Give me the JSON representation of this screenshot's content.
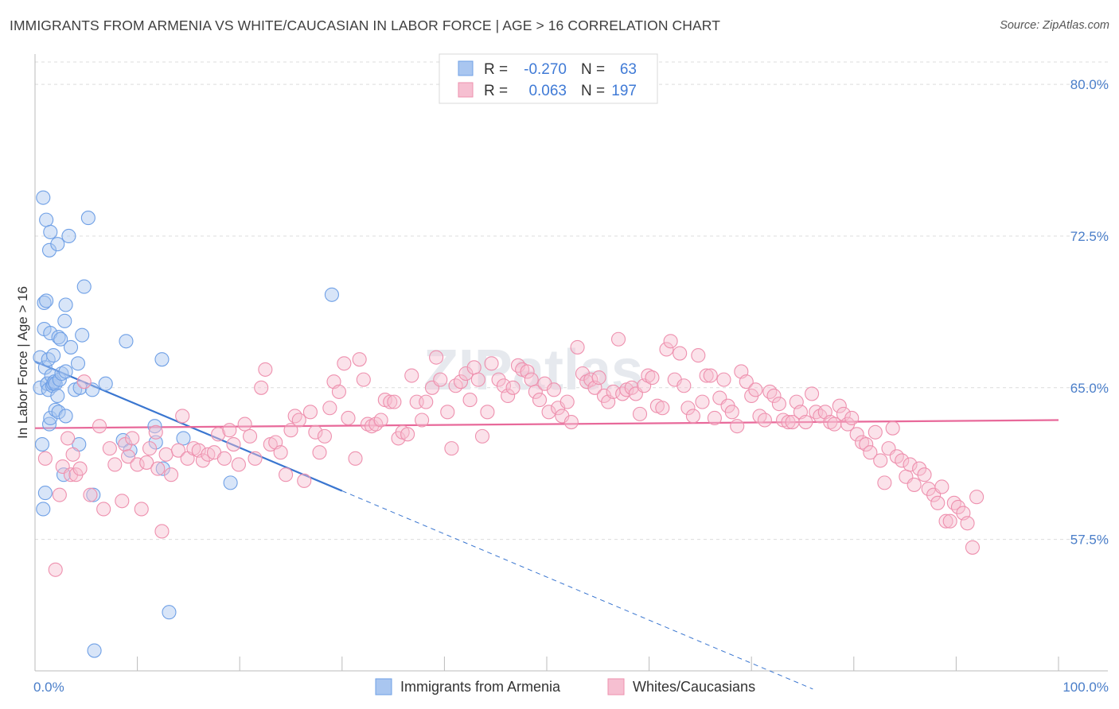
{
  "title": "IMMIGRANTS FROM ARMENIA VS WHITE/CAUCASIAN IN LABOR FORCE | AGE > 16 CORRELATION CHART",
  "source": "Source: ZipAtlas.com",
  "watermark": "ZIPatlas",
  "chart_data": {
    "type": "scatter",
    "ylabel": "In Labor Force | Age > 16",
    "xlim": [
      0,
      100
    ],
    "ylim": [
      51.0,
      81.5
    ],
    "x_tick_labels": [
      {
        "value": 0,
        "label": "0.0%"
      },
      {
        "value": 100,
        "label": "100.0%"
      }
    ],
    "y_ticks": [
      {
        "value": 57.5,
        "label": "57.5%"
      },
      {
        "value": 65.0,
        "label": "65.0%"
      },
      {
        "value": 72.5,
        "label": "72.5%"
      },
      {
        "value": 80.0,
        "label": "80.0%"
      }
    ],
    "grid": "horizontal dashed",
    "legend_position": "top-center",
    "stats": [
      {
        "r_label": "R =",
        "r": "-0.270",
        "n_label": "N =",
        "n": "63"
      },
      {
        "r_label": "R =",
        "r": "0.063",
        "n_label": "N =",
        "n": "197"
      }
    ],
    "series": [
      {
        "name": "Immigrants from Armenia",
        "color": "#6fa0e6",
        "fill": "#a9c6f0",
        "line_color": "#3a76d0",
        "trend": {
          "x0": 0,
          "y0": 66.3,
          "x1": 30,
          "y1": 59.9,
          "dash_to_x": 76,
          "dash_to_y": 50.1
        },
        "points": [
          [
            0.5,
            66.5
          ],
          [
            0.5,
            65.0
          ],
          [
            0.7,
            62.2
          ],
          [
            0.8,
            74.4
          ],
          [
            0.8,
            59.0
          ],
          [
            0.9,
            69.2
          ],
          [
            0.9,
            67.9
          ],
          [
            1.0,
            66.0
          ],
          [
            1.0,
            59.8
          ],
          [
            1.1,
            69.3
          ],
          [
            1.1,
            73.3
          ],
          [
            1.2,
            65.2
          ],
          [
            1.2,
            65.2
          ],
          [
            1.3,
            66.4
          ],
          [
            1.3,
            64.9
          ],
          [
            1.4,
            71.8
          ],
          [
            1.4,
            63.2
          ],
          [
            1.5,
            67.7
          ],
          [
            1.5,
            63.5
          ],
          [
            1.5,
            72.7
          ],
          [
            1.6,
            65.6
          ],
          [
            1.7,
            65.1
          ],
          [
            1.8,
            66.6
          ],
          [
            1.8,
            65.2
          ],
          [
            1.9,
            65.3
          ],
          [
            2.0,
            63.9
          ],
          [
            2.0,
            65.2
          ],
          [
            2.2,
            72.1
          ],
          [
            2.2,
            64.6
          ],
          [
            2.3,
            63.8
          ],
          [
            2.3,
            67.5
          ],
          [
            2.4,
            65.4
          ],
          [
            2.5,
            67.4
          ],
          [
            2.6,
            65.7
          ],
          [
            2.8,
            60.7
          ],
          [
            2.9,
            68.3
          ],
          [
            3.0,
            63.6
          ],
          [
            3.0,
            69.1
          ],
          [
            3.3,
            72.5
          ],
          [
            3.5,
            67.0
          ],
          [
            3.9,
            64.9
          ],
          [
            4.2,
            66.2
          ],
          [
            4.3,
            62.2
          ],
          [
            4.4,
            65.0
          ],
          [
            4.6,
            67.6
          ],
          [
            4.8,
            70.0
          ],
          [
            5.2,
            73.4
          ],
          [
            5.6,
            64.9
          ],
          [
            5.7,
            59.7
          ],
          [
            5.8,
            52.0
          ],
          [
            6.9,
            65.2
          ],
          [
            8.6,
            62.4
          ],
          [
            8.9,
            67.3
          ],
          [
            9.3,
            61.9
          ],
          [
            11.7,
            63.1
          ],
          [
            11.8,
            62.3
          ],
          [
            12.4,
            66.4
          ],
          [
            12.5,
            61.0
          ],
          [
            13.1,
            53.9
          ],
          [
            14.5,
            62.5
          ],
          [
            19.1,
            60.3
          ],
          [
            29.0,
            69.6
          ],
          [
            3.0,
            65.8
          ]
        ]
      },
      {
        "name": "Whites/Caucasians",
        "color": "#ee90ae",
        "fill": "#f6bfd1",
        "line_color": "#e8699a",
        "trend": {
          "x0": 0,
          "y0": 63.0,
          "x1": 100,
          "y1": 63.4
        },
        "points": [
          [
            1.0,
            61.5
          ],
          [
            2.0,
            56.0
          ],
          [
            2.4,
            59.7
          ],
          [
            2.7,
            61.1
          ],
          [
            3.2,
            62.5
          ],
          [
            3.5,
            60.7
          ],
          [
            3.7,
            61.7
          ],
          [
            4.0,
            60.7
          ],
          [
            4.4,
            61.0
          ],
          [
            4.8,
            65.3
          ],
          [
            5.4,
            59.7
          ],
          [
            6.3,
            63.1
          ],
          [
            6.7,
            59.0
          ],
          [
            7.3,
            62.0
          ],
          [
            7.8,
            61.2
          ],
          [
            8.5,
            59.4
          ],
          [
            8.8,
            62.2
          ],
          [
            9.1,
            61.6
          ],
          [
            9.5,
            62.5
          ],
          [
            10.0,
            61.2
          ],
          [
            10.4,
            59.0
          ],
          [
            10.9,
            61.3
          ],
          [
            11.2,
            62.0
          ],
          [
            11.8,
            62.8
          ],
          [
            12.0,
            61.0
          ],
          [
            12.4,
            57.9
          ],
          [
            12.8,
            61.7
          ],
          [
            13.3,
            60.7
          ],
          [
            14.0,
            61.9
          ],
          [
            14.4,
            63.6
          ],
          [
            14.9,
            61.5
          ],
          [
            15.5,
            62.0
          ],
          [
            16.0,
            61.9
          ],
          [
            16.4,
            61.4
          ],
          [
            16.9,
            61.7
          ],
          [
            17.5,
            61.8
          ],
          [
            17.9,
            62.7
          ],
          [
            18.5,
            61.5
          ],
          [
            19.0,
            62.9
          ],
          [
            19.4,
            62.2
          ],
          [
            19.9,
            61.2
          ],
          [
            20.5,
            63.2
          ],
          [
            21.0,
            62.6
          ],
          [
            21.5,
            61.5
          ],
          [
            22.1,
            65.0
          ],
          [
            22.5,
            65.9
          ],
          [
            23.0,
            62.2
          ],
          [
            23.5,
            62.3
          ],
          [
            24.0,
            61.8
          ],
          [
            24.5,
            60.7
          ],
          [
            25.0,
            62.9
          ],
          [
            25.4,
            63.6
          ],
          [
            25.8,
            63.4
          ],
          [
            26.3,
            60.4
          ],
          [
            26.9,
            63.8
          ],
          [
            27.4,
            62.8
          ],
          [
            27.8,
            61.8
          ],
          [
            28.3,
            62.6
          ],
          [
            28.8,
            64.0
          ],
          [
            29.2,
            65.3
          ],
          [
            29.7,
            64.8
          ],
          [
            30.2,
            66.2
          ],
          [
            30.6,
            63.5
          ],
          [
            31.3,
            61.5
          ],
          [
            31.7,
            66.4
          ],
          [
            32.1,
            65.4
          ],
          [
            32.5,
            63.2
          ],
          [
            32.9,
            63.1
          ],
          [
            33.3,
            63.2
          ],
          [
            33.8,
            63.4
          ],
          [
            34.2,
            64.4
          ],
          [
            34.7,
            64.3
          ],
          [
            35.1,
            64.3
          ],
          [
            35.5,
            62.5
          ],
          [
            35.9,
            62.8
          ],
          [
            36.4,
            62.7
          ],
          [
            36.8,
            65.6
          ],
          [
            37.3,
            64.3
          ],
          [
            37.8,
            63.4
          ],
          [
            38.2,
            64.3
          ],
          [
            38.8,
            65.0
          ],
          [
            39.2,
            66.5
          ],
          [
            39.6,
            65.4
          ],
          [
            40.3,
            63.8
          ],
          [
            40.7,
            62.0
          ],
          [
            41.1,
            65.1
          ],
          [
            41.6,
            65.3
          ],
          [
            42.1,
            65.7
          ],
          [
            42.5,
            64.4
          ],
          [
            42.9,
            66.0
          ],
          [
            43.3,
            65.4
          ],
          [
            43.7,
            62.6
          ],
          [
            44.2,
            63.8
          ],
          [
            44.6,
            66.2
          ],
          [
            45.3,
            65.4
          ],
          [
            45.8,
            65.1
          ],
          [
            46.2,
            64.6
          ],
          [
            46.7,
            65.0
          ],
          [
            47.2,
            66.1
          ],
          [
            47.6,
            65.9
          ],
          [
            48.1,
            65.8
          ],
          [
            48.5,
            65.4
          ],
          [
            48.9,
            64.8
          ],
          [
            49.3,
            64.4
          ],
          [
            49.8,
            65.2
          ],
          [
            50.2,
            63.8
          ],
          [
            50.7,
            64.9
          ],
          [
            51.1,
            64.0
          ],
          [
            51.5,
            63.6
          ],
          [
            52.0,
            64.3
          ],
          [
            52.4,
            63.3
          ],
          [
            53.0,
            67.0
          ],
          [
            53.5,
            65.7
          ],
          [
            53.9,
            65.3
          ],
          [
            54.3,
            65.4
          ],
          [
            54.7,
            65.0
          ],
          [
            55.1,
            65.5
          ],
          [
            55.6,
            64.6
          ],
          [
            56.0,
            64.3
          ],
          [
            56.5,
            64.8
          ],
          [
            57.0,
            67.4
          ],
          [
            57.4,
            64.7
          ],
          [
            57.8,
            64.9
          ],
          [
            58.3,
            65.0
          ],
          [
            58.7,
            64.7
          ],
          [
            59.1,
            63.7
          ],
          [
            59.5,
            65.1
          ],
          [
            59.9,
            65.6
          ],
          [
            60.3,
            65.5
          ],
          [
            60.8,
            64.1
          ],
          [
            61.3,
            64.0
          ],
          [
            61.7,
            66.9
          ],
          [
            62.1,
            67.3
          ],
          [
            62.5,
            65.4
          ],
          [
            63.0,
            66.7
          ],
          [
            63.4,
            65.1
          ],
          [
            63.8,
            64.0
          ],
          [
            64.3,
            63.6
          ],
          [
            64.8,
            66.6
          ],
          [
            65.2,
            64.3
          ],
          [
            65.6,
            65.6
          ],
          [
            66.0,
            65.6
          ],
          [
            66.4,
            63.5
          ],
          [
            66.9,
            64.5
          ],
          [
            67.3,
            65.4
          ],
          [
            67.7,
            64.1
          ],
          [
            68.1,
            63.8
          ],
          [
            68.6,
            63.1
          ],
          [
            69.0,
            65.8
          ],
          [
            69.5,
            65.3
          ],
          [
            70.0,
            64.6
          ],
          [
            70.4,
            64.9
          ],
          [
            70.8,
            63.6
          ],
          [
            71.3,
            63.4
          ],
          [
            71.8,
            64.8
          ],
          [
            72.2,
            64.6
          ],
          [
            72.7,
            64.2
          ],
          [
            73.1,
            63.4
          ],
          [
            73.6,
            63.3
          ],
          [
            74.0,
            63.3
          ],
          [
            74.4,
            64.3
          ],
          [
            74.8,
            63.8
          ],
          [
            75.3,
            63.3
          ],
          [
            75.9,
            64.7
          ],
          [
            76.3,
            63.8
          ],
          [
            76.7,
            63.6
          ],
          [
            77.2,
            63.8
          ],
          [
            77.7,
            63.3
          ],
          [
            78.1,
            63.2
          ],
          [
            78.6,
            64.1
          ],
          [
            79.0,
            63.7
          ],
          [
            79.4,
            63.2
          ],
          [
            79.8,
            63.5
          ],
          [
            80.3,
            62.7
          ],
          [
            80.8,
            62.3
          ],
          [
            81.2,
            62.2
          ],
          [
            81.6,
            61.8
          ],
          [
            82.1,
            62.8
          ],
          [
            82.6,
            61.4
          ],
          [
            83.0,
            60.3
          ],
          [
            83.4,
            62.0
          ],
          [
            83.8,
            63.0
          ],
          [
            84.2,
            61.6
          ],
          [
            84.7,
            61.4
          ],
          [
            85.1,
            60.6
          ],
          [
            85.5,
            61.2
          ],
          [
            85.9,
            60.2
          ],
          [
            86.4,
            61.0
          ],
          [
            86.9,
            60.7
          ],
          [
            87.3,
            60.0
          ],
          [
            87.8,
            59.7
          ],
          [
            88.2,
            59.3
          ],
          [
            88.6,
            60.1
          ],
          [
            89.0,
            58.4
          ],
          [
            89.4,
            58.4
          ],
          [
            89.8,
            59.3
          ],
          [
            90.2,
            59.1
          ],
          [
            90.7,
            58.8
          ],
          [
            91.1,
            58.3
          ],
          [
            91.6,
            57.1
          ],
          [
            92.0,
            59.6
          ]
        ]
      }
    ]
  }
}
